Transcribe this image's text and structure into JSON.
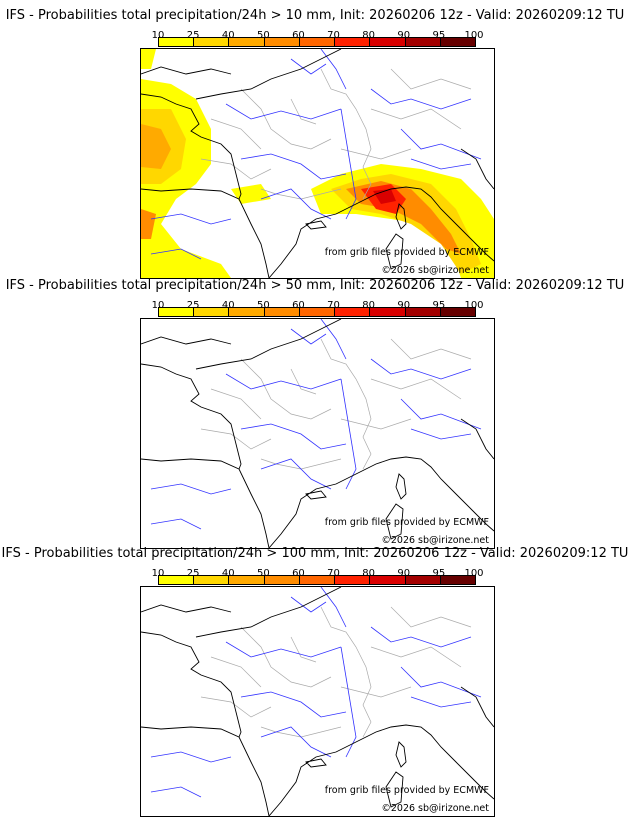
{
  "panels": [
    {
      "title": "IFS - Probabilities total precipitation/24h > 10 mm, Init: 20260206 12z - Valid: 20260209:12 TU",
      "has_precip": true
    },
    {
      "title": "IFS - Probabilities total precipitation/24h > 50 mm, Init: 20260206 12z - Valid: 20260209:12 TU",
      "has_precip": false
    },
    {
      "title": "IFS - Probabilities total precipitation/24h > 100 mm, Init: 20260206 12z - Valid: 20260209:12 TU",
      "has_precip": false
    }
  ],
  "colorbar": {
    "ticks": [
      "10",
      "25",
      "40",
      "50",
      "60",
      "70",
      "80",
      "90",
      "95",
      "100"
    ],
    "colors": [
      "#ffff00",
      "#ffd700",
      "#ffaa00",
      "#ff8c00",
      "#ff6600",
      "#ff2200",
      "#d90000",
      "#a30000",
      "#660000"
    ]
  },
  "credits": {
    "source": "from grib files provided by ECMWF",
    "copyright": "©2026 sb@irizone.net"
  },
  "map_colors": {
    "coast": "#000000",
    "rivers": "#3333ff",
    "borders": "#aaaaaa"
  }
}
